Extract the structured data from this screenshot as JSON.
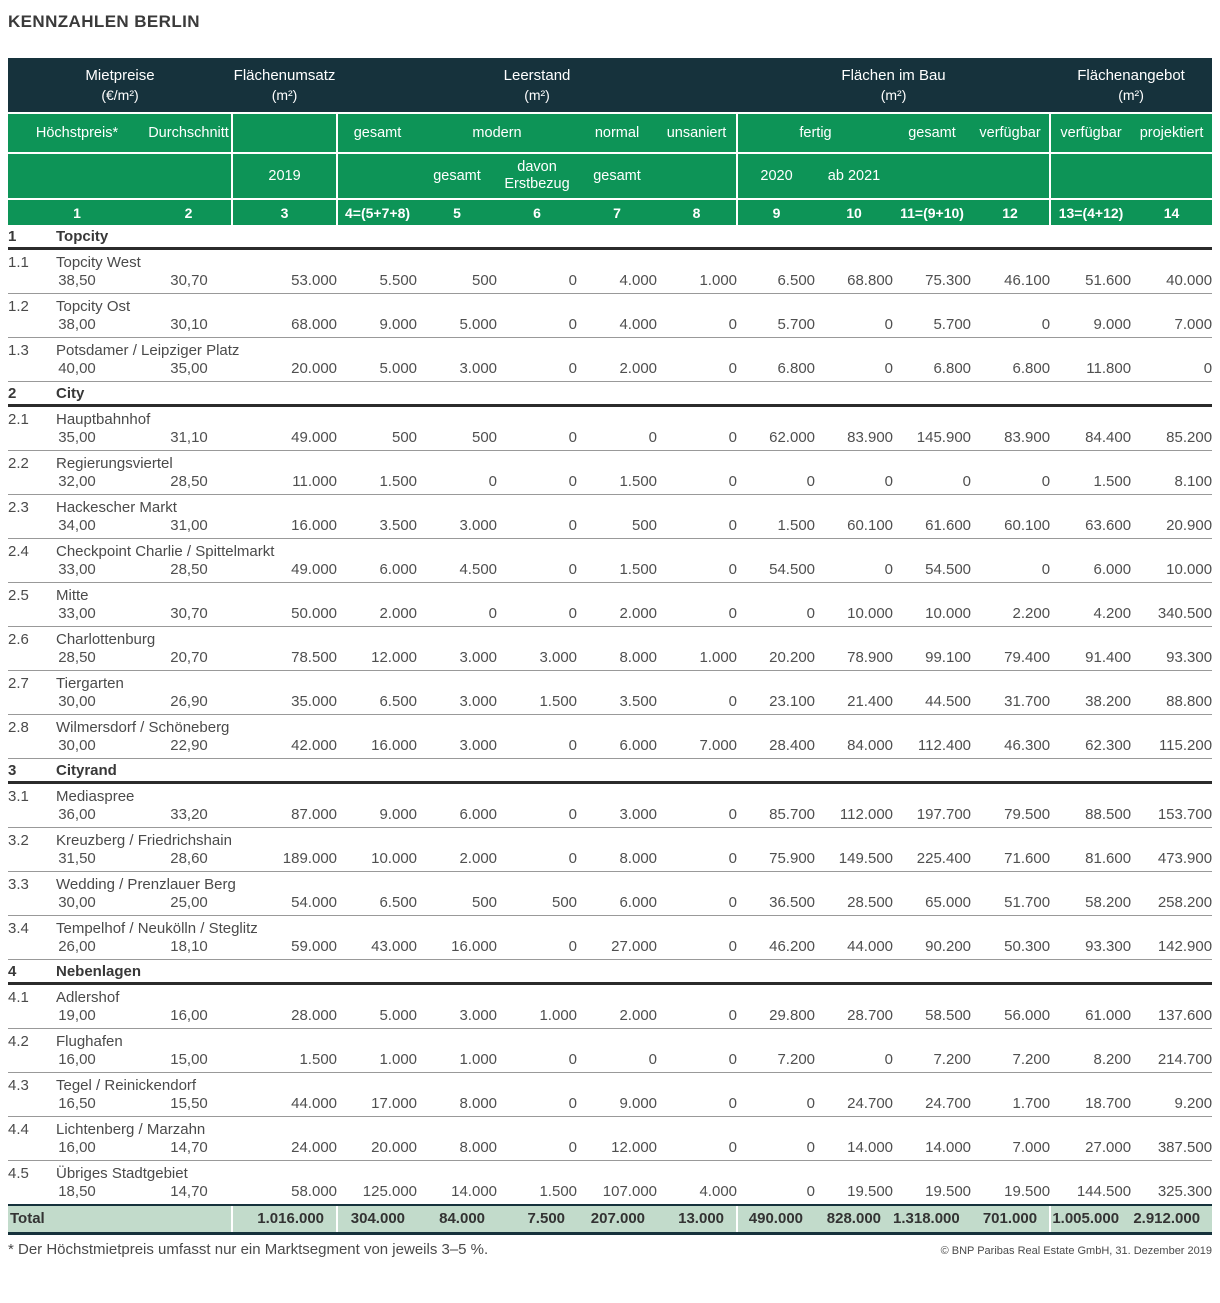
{
  "chart_data": {
    "type": "table",
    "title": "KENNZAHLEN BERLIN",
    "column_groups": [
      {
        "label": "Mietpreise",
        "unit": "(€/m²)"
      },
      {
        "label": "Flächenumsatz",
        "unit": "(m²)"
      },
      {
        "label": "Leerstand",
        "unit": "(m²)"
      },
      {
        "label": "Flächen im Bau",
        "unit": "(m²)"
      },
      {
        "label": "Flächenangebot",
        "unit": "(m²)"
      }
    ],
    "subheaders": {
      "hoechstpreis": "Höchstpreis*",
      "durchschnitt": "Durchschnitt",
      "gesamt": "gesamt",
      "modern": "modern",
      "normal": "normal",
      "unsaniert": "unsaniert",
      "fertig": "fertig",
      "verfuegbar": "verfügbar",
      "projektiert": "projektiert",
      "jahr2019": "2019",
      "davon_erstbezug": "davon Erstbezug",
      "jahr2020": "2020",
      "ab2021": "ab 2021"
    },
    "column_numbers": [
      "1",
      "2",
      "3",
      "4=(5+7+8)",
      "5",
      "6",
      "7",
      "8",
      "9",
      "10",
      "11=(9+10)",
      "12",
      "13=(4+12)",
      "14"
    ],
    "sections": [
      {
        "id": "1",
        "label": "Topcity",
        "rows": [
          {
            "id": "1.1",
            "label": "Topcity West",
            "values": [
              "38,50",
              "30,70",
              "53.000",
              "5.500",
              "500",
              "0",
              "4.000",
              "1.000",
              "6.500",
              "68.800",
              "75.300",
              "46.100",
              "51.600",
              "40.000"
            ]
          },
          {
            "id": "1.2",
            "label": "Topcity Ost",
            "values": [
              "38,00",
              "30,10",
              "68.000",
              "9.000",
              "5.000",
              "0",
              "4.000",
              "0",
              "5.700",
              "0",
              "5.700",
              "0",
              "9.000",
              "7.000"
            ]
          },
          {
            "id": "1.3",
            "label": "Potsdamer / Leipziger Platz",
            "values": [
              "40,00",
              "35,00",
              "20.000",
              "5.000",
              "3.000",
              "0",
              "2.000",
              "0",
              "6.800",
              "0",
              "6.800",
              "6.800",
              "11.800",
              "0"
            ]
          }
        ]
      },
      {
        "id": "2",
        "label": "City",
        "rows": [
          {
            "id": "2.1",
            "label": "Hauptbahnhof",
            "values": [
              "35,00",
              "31,10",
              "49.000",
              "500",
              "500",
              "0",
              "0",
              "0",
              "62.000",
              "83.900",
              "145.900",
              "83.900",
              "84.400",
              "85.200"
            ]
          },
          {
            "id": "2.2",
            "label": "Regierungsviertel",
            "values": [
              "32,00",
              "28,50",
              "11.000",
              "1.500",
              "0",
              "0",
              "1.500",
              "0",
              "0",
              "0",
              "0",
              "0",
              "1.500",
              "8.100"
            ]
          },
          {
            "id": "2.3",
            "label": "Hackescher Markt",
            "values": [
              "34,00",
              "31,00",
              "16.000",
              "3.500",
              "3.000",
              "0",
              "500",
              "0",
              "1.500",
              "60.100",
              "61.600",
              "60.100",
              "63.600",
              "20.900"
            ]
          },
          {
            "id": "2.4",
            "label": "Checkpoint Charlie / Spittelmarkt",
            "values": [
              "33,00",
              "28,50",
              "49.000",
              "6.000",
              "4.500",
              "0",
              "1.500",
              "0",
              "54.500",
              "0",
              "54.500",
              "0",
              "6.000",
              "10.000"
            ]
          },
          {
            "id": "2.5",
            "label": "Mitte",
            "values": [
              "33,00",
              "30,70",
              "50.000",
              "2.000",
              "0",
              "0",
              "2.000",
              "0",
              "0",
              "10.000",
              "10.000",
              "2.200",
              "4.200",
              "340.500"
            ]
          },
          {
            "id": "2.6",
            "label": "Charlottenburg",
            "values": [
              "28,50",
              "20,70",
              "78.500",
              "12.000",
              "3.000",
              "3.000",
              "8.000",
              "1.000",
              "20.200",
              "78.900",
              "99.100",
              "79.400",
              "91.400",
              "93.300"
            ]
          },
          {
            "id": "2.7",
            "label": "Tiergarten",
            "values": [
              "30,00",
              "26,90",
              "35.000",
              "6.500",
              "3.000",
              "1.500",
              "3.500",
              "0",
              "23.100",
              "21.400",
              "44.500",
              "31.700",
              "38.200",
              "88.800"
            ]
          },
          {
            "id": "2.8",
            "label": "Wilmersdorf / Schöneberg",
            "values": [
              "30,00",
              "22,90",
              "42.000",
              "16.000",
              "3.000",
              "0",
              "6.000",
              "7.000",
              "28.400",
              "84.000",
              "112.400",
              "46.300",
              "62.300",
              "115.200"
            ]
          }
        ]
      },
      {
        "id": "3",
        "label": "Cityrand",
        "rows": [
          {
            "id": "3.1",
            "label": "Mediaspree",
            "values": [
              "36,00",
              "33,20",
              "87.000",
              "9.000",
              "6.000",
              "0",
              "3.000",
              "0",
              "85.700",
              "112.000",
              "197.700",
              "79.500",
              "88.500",
              "153.700"
            ]
          },
          {
            "id": "3.2",
            "label": "Kreuzberg / Friedrichshain",
            "values": [
              "31,50",
              "28,60",
              "189.000",
              "10.000",
              "2.000",
              "0",
              "8.000",
              "0",
              "75.900",
              "149.500",
              "225.400",
              "71.600",
              "81.600",
              "473.900"
            ]
          },
          {
            "id": "3.3",
            "label": "Wedding / Prenzlauer Berg",
            "values": [
              "30,00",
              "25,00",
              "54.000",
              "6.500",
              "500",
              "500",
              "6.000",
              "0",
              "36.500",
              "28.500",
              "65.000",
              "51.700",
              "58.200",
              "258.200"
            ]
          },
          {
            "id": "3.4",
            "label": "Tempelhof / Neukölln / Steglitz",
            "values": [
              "26,00",
              "18,10",
              "59.000",
              "43.000",
              "16.000",
              "0",
              "27.000",
              "0",
              "46.200",
              "44.000",
              "90.200",
              "50.300",
              "93.300",
              "142.900"
            ]
          }
        ]
      },
      {
        "id": "4",
        "label": "Nebenlagen",
        "rows": [
          {
            "id": "4.1",
            "label": "Adlershof",
            "values": [
              "19,00",
              "16,00",
              "28.000",
              "5.000",
              "3.000",
              "1.000",
              "2.000",
              "0",
              "29.800",
              "28.700",
              "58.500",
              "56.000",
              "61.000",
              "137.600"
            ]
          },
          {
            "id": "4.2",
            "label": "Flughafen",
            "values": [
              "16,00",
              "15,00",
              "1.500",
              "1.000",
              "1.000",
              "0",
              "0",
              "0",
              "7.200",
              "0",
              "7.200",
              "7.200",
              "8.200",
              "214.700"
            ]
          },
          {
            "id": "4.3",
            "label": "Tegel / Reinickendorf",
            "values": [
              "16,50",
              "15,50",
              "44.000",
              "17.000",
              "8.000",
              "0",
              "9.000",
              "0",
              "0",
              "24.700",
              "24.700",
              "1.700",
              "18.700",
              "9.200"
            ]
          },
          {
            "id": "4.4",
            "label": "Lichtenberg / Marzahn",
            "values": [
              "16,00",
              "14,70",
              "24.000",
              "20.000",
              "8.000",
              "0",
              "12.000",
              "0",
              "0",
              "14.000",
              "14.000",
              "7.000",
              "27.000",
              "387.500"
            ]
          },
          {
            "id": "4.5",
            "label": "Übriges Stadtgebiet",
            "values": [
              "18,50",
              "14,70",
              "58.000",
              "125.000",
              "14.000",
              "1.500",
              "107.000",
              "4.000",
              "0",
              "19.500",
              "19.500",
              "19.500",
              "144.500",
              "325.300"
            ]
          }
        ]
      }
    ],
    "total": {
      "label": "Total",
      "values": [
        "1.016.000",
        "304.000",
        "84.000",
        "7.500",
        "207.000",
        "13.000",
        "490.000",
        "828.000",
        "1.318.000",
        "701.000",
        "1.005.000",
        "2.912.000"
      ]
    },
    "footnote": "* Der Höchstmietpreis umfasst nur ein Marktsegment von jeweils 3–5 %.",
    "copyright": "© BNP Paribas Real Estate GmbH, 31. Dezember 2019",
    "colors": {
      "header_dark": "#16323c",
      "header_green": "#0d9457",
      "total_background": "#c2dbcb"
    }
  }
}
